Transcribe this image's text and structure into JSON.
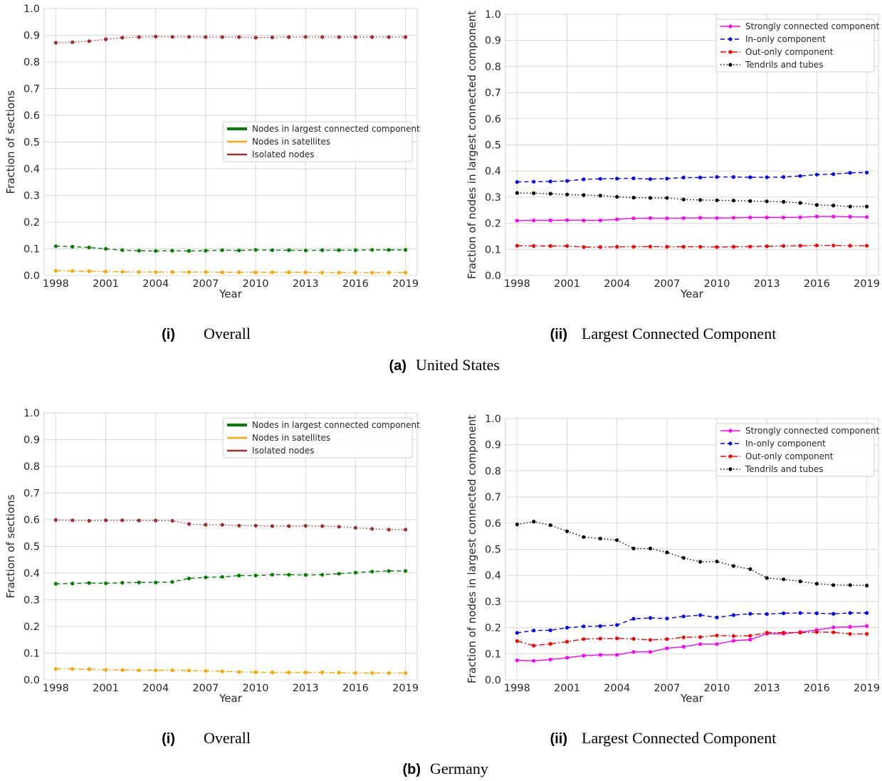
{
  "figure": {
    "groups": [
      {
        "label": "(a)",
        "title": "United States"
      },
      {
        "label": "(b)",
        "title": "Germany"
      }
    ],
    "panel_captions": [
      {
        "label": "(i)",
        "title": "Overall"
      },
      {
        "label": "(ii)",
        "title": "Largest Connected Component"
      }
    ]
  },
  "chart_data": [
    {
      "id": "us-overall",
      "type": "line",
      "xlabel": "Year",
      "ylabel": "Fraction of sections",
      "ylim": [
        0,
        1.0
      ],
      "yticks": [
        "0.0",
        "0.1",
        "0.2",
        "0.3",
        "0.4",
        "0.5",
        "0.6",
        "0.7",
        "0.8",
        "0.9",
        "1.0"
      ],
      "xlim": [
        1997.3,
        2019.7
      ],
      "xticks": [
        "1998",
        "2001",
        "2004",
        "2007",
        "2010",
        "2013",
        "2016",
        "2019"
      ],
      "grid": true,
      "legend_position": "center-right",
      "x": [
        1998,
        1999,
        2000,
        2001,
        2002,
        2003,
        2004,
        2005,
        2006,
        2007,
        2008,
        2009,
        2010,
        2011,
        2012,
        2013,
        2014,
        2015,
        2016,
        2017,
        2018,
        2019
      ],
      "series": [
        {
          "name": "Nodes in largest connected component",
          "color": "#008000",
          "dash": "dashed",
          "values": [
            0.11,
            0.108,
            0.105,
            0.1,
            0.095,
            0.093,
            0.092,
            0.093,
            0.092,
            0.093,
            0.095,
            0.094,
            0.096,
            0.095,
            0.095,
            0.094,
            0.095,
            0.095,
            0.095,
            0.096,
            0.096,
            0.096
          ]
        },
        {
          "name": "Nodes in satellites",
          "color": "#ffa500",
          "dash": "dashdot",
          "values": [
            0.018,
            0.017,
            0.016,
            0.015,
            0.014,
            0.013,
            0.013,
            0.013,
            0.013,
            0.013,
            0.012,
            0.012,
            0.012,
            0.012,
            0.012,
            0.012,
            0.011,
            0.011,
            0.011,
            0.011,
            0.011,
            0.011
          ]
        },
        {
          "name": "Isolated nodes",
          "color": "#a52a2a",
          "dash": "dotted",
          "values": [
            0.872,
            0.874,
            0.878,
            0.885,
            0.891,
            0.893,
            0.895,
            0.894,
            0.894,
            0.893,
            0.893,
            0.893,
            0.891,
            0.892,
            0.893,
            0.894,
            0.893,
            0.893,
            0.893,
            0.893,
            0.893,
            0.893
          ]
        }
      ]
    },
    {
      "id": "us-lcc",
      "type": "line",
      "xlabel": "Year",
      "ylabel": "Fraction of nodes in largest connected component",
      "ylim": [
        0,
        1.0
      ],
      "yticks": [
        "0.0",
        "0.1",
        "0.2",
        "0.3",
        "0.4",
        "0.5",
        "0.6",
        "0.7",
        "0.8",
        "0.9",
        "1.0"
      ],
      "xlim": [
        1997.3,
        2019.7
      ],
      "xticks": [
        "1998",
        "2001",
        "2004",
        "2007",
        "2010",
        "2013",
        "2016",
        "2019"
      ],
      "grid": true,
      "legend_position": "top-right",
      "x": [
        1998,
        1999,
        2000,
        2001,
        2002,
        2003,
        2004,
        2005,
        2006,
        2007,
        2008,
        2009,
        2010,
        2011,
        2012,
        2013,
        2014,
        2015,
        2016,
        2017,
        2018,
        2019
      ],
      "series": [
        {
          "name": "Strongly connected component",
          "color": "#ff00ff",
          "dash": "solid",
          "values": [
            0.21,
            0.211,
            0.211,
            0.212,
            0.211,
            0.211,
            0.215,
            0.219,
            0.22,
            0.219,
            0.22,
            0.221,
            0.22,
            0.221,
            0.222,
            0.222,
            0.222,
            0.223,
            0.226,
            0.226,
            0.225,
            0.224
          ]
        },
        {
          "name": "In-only component",
          "color": "#0000ff",
          "dash": "dashed",
          "values": [
            0.358,
            0.359,
            0.36,
            0.362,
            0.368,
            0.37,
            0.371,
            0.372,
            0.369,
            0.371,
            0.375,
            0.375,
            0.377,
            0.377,
            0.376,
            0.376,
            0.377,
            0.381,
            0.386,
            0.388,
            0.393,
            0.394
          ]
        },
        {
          "name": "Out-only component",
          "color": "#ff0000",
          "dash": "dashdot",
          "values": [
            0.114,
            0.113,
            0.113,
            0.113,
            0.109,
            0.109,
            0.11,
            0.11,
            0.111,
            0.11,
            0.11,
            0.11,
            0.109,
            0.11,
            0.111,
            0.112,
            0.113,
            0.114,
            0.115,
            0.115,
            0.114,
            0.114
          ]
        },
        {
          "name": "Tendrils and tubes",
          "color": "#000000",
          "dash": "dotted",
          "values": [
            0.316,
            0.315,
            0.313,
            0.31,
            0.308,
            0.306,
            0.301,
            0.298,
            0.297,
            0.297,
            0.291,
            0.289,
            0.288,
            0.287,
            0.285,
            0.284,
            0.282,
            0.278,
            0.27,
            0.268,
            0.264,
            0.264
          ]
        }
      ]
    },
    {
      "id": "de-overall",
      "type": "line",
      "xlabel": "Year",
      "ylabel": "Fraction of sections",
      "ylim": [
        0,
        1.0
      ],
      "yticks": [
        "0.0",
        "0.1",
        "0.2",
        "0.3",
        "0.4",
        "0.5",
        "0.6",
        "0.7",
        "0.8",
        "0.9",
        "1.0"
      ],
      "xlim": [
        1997.3,
        2019.7
      ],
      "xticks": [
        "1998",
        "2001",
        "2004",
        "2007",
        "2010",
        "2013",
        "2016",
        "2019"
      ],
      "grid": true,
      "legend_position": "top-right",
      "x": [
        1998,
        1999,
        2000,
        2001,
        2002,
        2003,
        2004,
        2005,
        2006,
        2007,
        2008,
        2009,
        2010,
        2011,
        2012,
        2013,
        2014,
        2015,
        2016,
        2017,
        2018,
        2019
      ],
      "series": [
        {
          "name": "Nodes in largest connected component",
          "color": "#008000",
          "dash": "dashed",
          "values": [
            0.36,
            0.361,
            0.363,
            0.362,
            0.364,
            0.365,
            0.365,
            0.367,
            0.38,
            0.384,
            0.386,
            0.391,
            0.391,
            0.394,
            0.394,
            0.393,
            0.394,
            0.398,
            0.402,
            0.406,
            0.408,
            0.408
          ]
        },
        {
          "name": "Nodes in satellites",
          "color": "#ffa500",
          "dash": "dashdot",
          "values": [
            0.041,
            0.041,
            0.04,
            0.038,
            0.037,
            0.036,
            0.036,
            0.036,
            0.035,
            0.034,
            0.032,
            0.03,
            0.029,
            0.028,
            0.028,
            0.028,
            0.028,
            0.027,
            0.026,
            0.026,
            0.026,
            0.026
          ]
        },
        {
          "name": "Isolated nodes",
          "color": "#a52a2a",
          "dash": "dotted",
          "values": [
            0.599,
            0.598,
            0.596,
            0.598,
            0.598,
            0.597,
            0.597,
            0.596,
            0.584,
            0.581,
            0.581,
            0.578,
            0.578,
            0.576,
            0.576,
            0.577,
            0.576,
            0.574,
            0.57,
            0.566,
            0.563,
            0.563
          ]
        }
      ]
    },
    {
      "id": "de-lcc",
      "type": "line",
      "xlabel": "Year",
      "ylabel": "Fraction of nodes in largest connected component",
      "ylim": [
        0,
        1.0
      ],
      "yticks": [
        "0.0",
        "0.1",
        "0.2",
        "0.3",
        "0.4",
        "0.5",
        "0.6",
        "0.7",
        "0.8",
        "0.9",
        "1.0"
      ],
      "xlim": [
        1997.3,
        2019.7
      ],
      "xticks": [
        "1998",
        "2001",
        "2004",
        "2007",
        "2010",
        "2013",
        "2016",
        "2019"
      ],
      "grid": true,
      "legend_position": "top-right",
      "x": [
        1998,
        1999,
        2000,
        2001,
        2002,
        2003,
        2004,
        2005,
        2006,
        2007,
        2008,
        2009,
        2010,
        2011,
        2012,
        2013,
        2014,
        2015,
        2016,
        2017,
        2018,
        2019
      ],
      "series": [
        {
          "name": "Strongly connected component",
          "color": "#ff00ff",
          "dash": "solid",
          "values": [
            0.075,
            0.073,
            0.078,
            0.085,
            0.093,
            0.096,
            0.096,
            0.107,
            0.107,
            0.121,
            0.127,
            0.137,
            0.137,
            0.15,
            0.154,
            0.177,
            0.177,
            0.183,
            0.191,
            0.201,
            0.203,
            0.206
          ]
        },
        {
          "name": "In-only component",
          "color": "#0000ff",
          "dash": "dashed",
          "values": [
            0.18,
            0.189,
            0.19,
            0.2,
            0.205,
            0.206,
            0.21,
            0.234,
            0.237,
            0.235,
            0.243,
            0.248,
            0.239,
            0.248,
            0.253,
            0.252,
            0.255,
            0.256,
            0.255,
            0.253,
            0.256,
            0.256
          ]
        },
        {
          "name": "Out-only component",
          "color": "#ff0000",
          "dash": "dashdot",
          "values": [
            0.149,
            0.131,
            0.138,
            0.146,
            0.156,
            0.158,
            0.159,
            0.157,
            0.153,
            0.156,
            0.163,
            0.164,
            0.17,
            0.168,
            0.169,
            0.181,
            0.181,
            0.181,
            0.183,
            0.182,
            0.176,
            0.176
          ]
        },
        {
          "name": "Tendrils and tubes",
          "color": "#000000",
          "dash": "dotted",
          "values": [
            0.595,
            0.606,
            0.592,
            0.569,
            0.547,
            0.541,
            0.535,
            0.503,
            0.503,
            0.488,
            0.467,
            0.452,
            0.453,
            0.436,
            0.424,
            0.39,
            0.385,
            0.377,
            0.368,
            0.363,
            0.363,
            0.361
          ]
        }
      ]
    }
  ]
}
